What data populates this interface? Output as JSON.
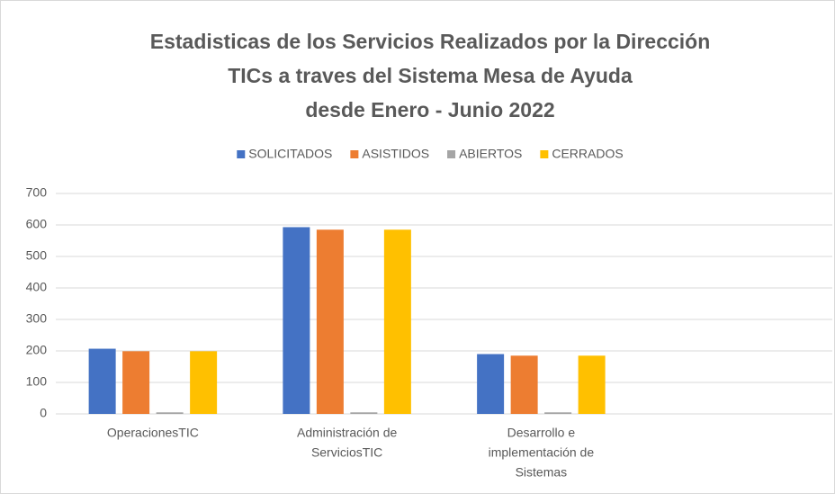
{
  "chart_data": {
    "type": "bar",
    "title": [
      "Estadisticas de los Servicios Realizados por la Dirección",
      "TICs a traves del Sistema Mesa de Ayuda",
      "desde Enero - Junio 2022"
    ],
    "categories": [
      [
        "OperacionesTIC"
      ],
      [
        "Administración de",
        "ServiciosTIC"
      ],
      [
        "Desarrollo e",
        "implementación de",
        "Sistemas"
      ],
      null
    ],
    "series": [
      {
        "name": "SOLICITADOS",
        "color": "#4472c4",
        "values": [
          207,
          593,
          190,
          null
        ]
      },
      {
        "name": "ASISTIDOS",
        "color": "#ed7d31",
        "values": [
          199,
          585,
          185,
          null
        ]
      },
      {
        "name": "ABIERTOS",
        "color": "#a5a5a5",
        "values": [
          5,
          5,
          5,
          null
        ]
      },
      {
        "name": "CERRADOS",
        "color": "#ffc000",
        "values": [
          199,
          585,
          185,
          null
        ]
      }
    ],
    "ylim": [
      0,
      700
    ],
    "yticks": [
      0,
      100,
      200,
      300,
      400,
      500,
      600,
      700
    ],
    "grid": true,
    "legend": "top"
  }
}
